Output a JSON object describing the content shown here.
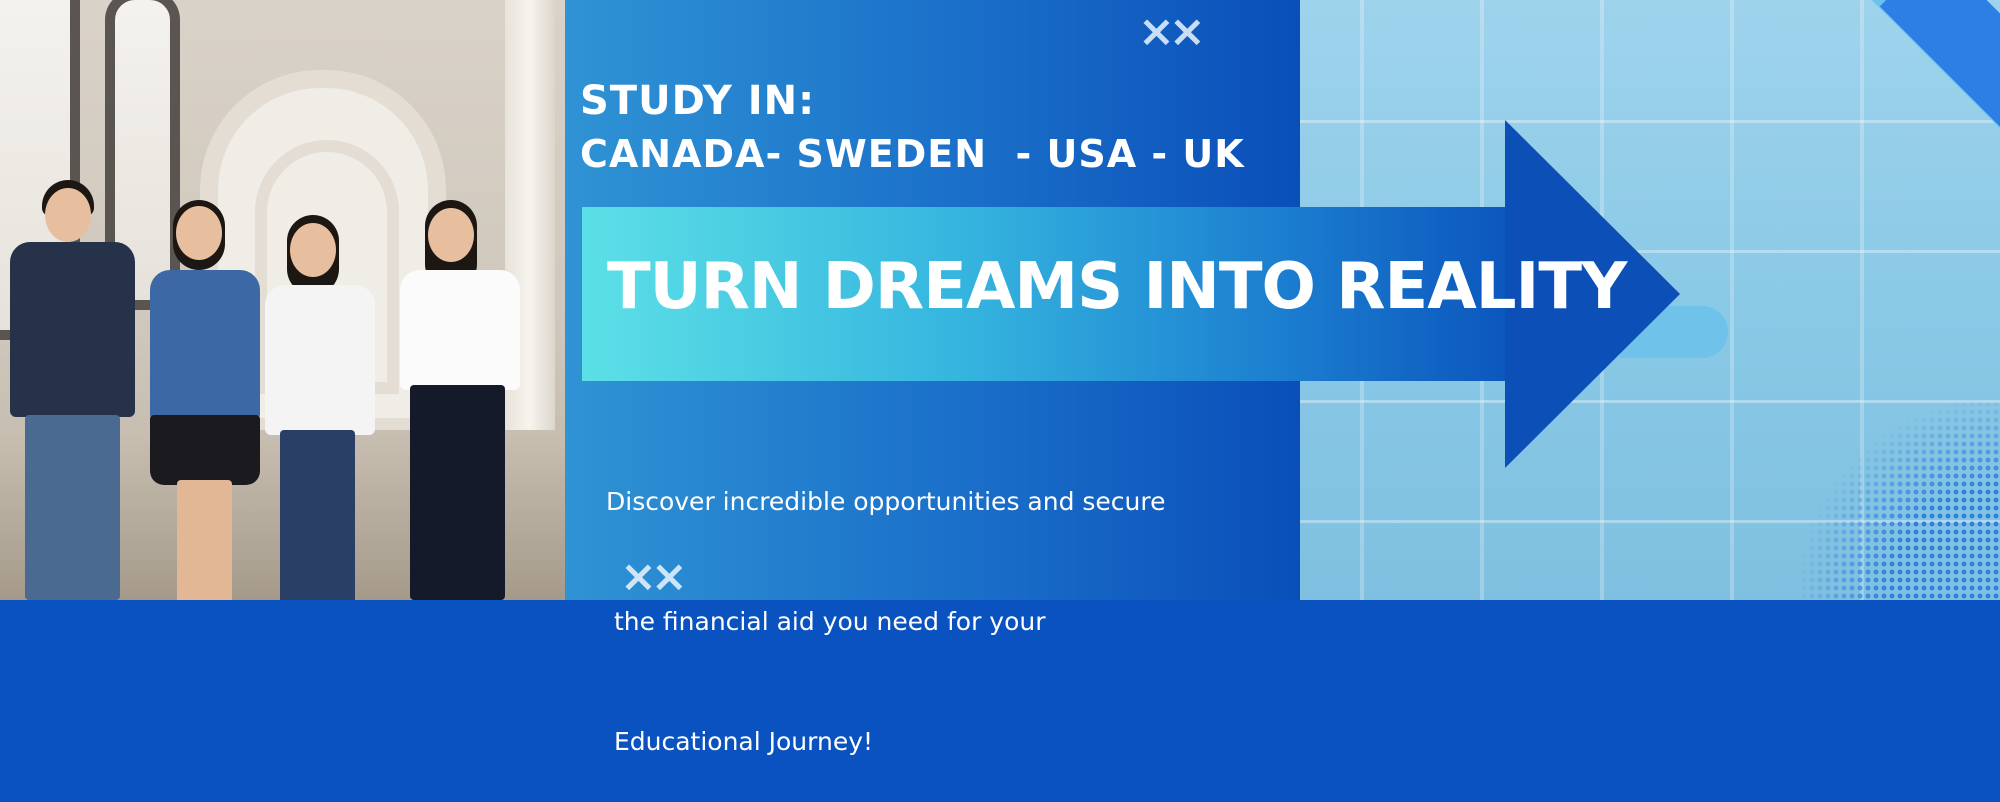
{
  "banner": {
    "study_in": "STUDY IN:",
    "countries": "CANADA- SWEDEN  - USA - UK",
    "headline": "TURN DREAMS INTO REALITY",
    "description_lines": [
      "Discover incredible opportunities and secure",
      " the financial aid you need for your",
      " Educational Journey!"
    ],
    "decor_mark": "××"
  },
  "colors": {
    "mid_panel_start": "#2f93d4",
    "mid_panel_end": "#0a4fb9",
    "arrow_start": "#5ce0e6",
    "arrow_end": "#0b4fb7",
    "right_panel": "#8ac9e6",
    "text": "#ffffff"
  },
  "icons": {
    "top_decor": "double-x-icon",
    "bottom_decor": "double-x-icon",
    "arrow": "arrow-right-icon"
  }
}
